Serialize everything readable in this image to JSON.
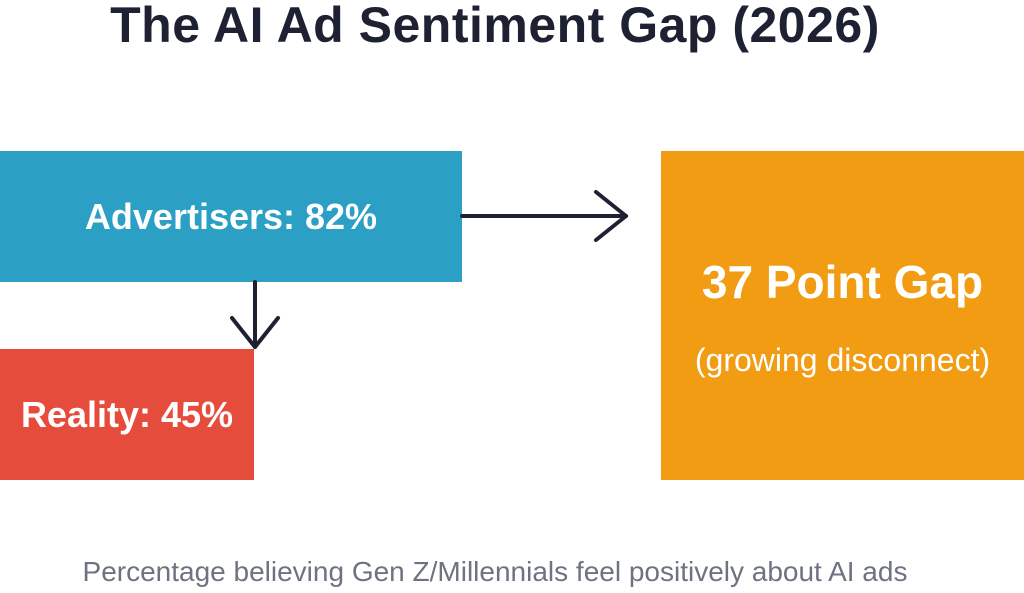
{
  "title": "The AI Ad Sentiment Gap (2026)",
  "advertisers": {
    "label": "Advertisers: 82%"
  },
  "reality": {
    "label": "Reality: 45%"
  },
  "gap": {
    "main": "37 Point Gap",
    "sub": "(growing disconnect)"
  },
  "caption": "Percentage believing Gen Z/Millennials feel positively about AI ads",
  "colors": {
    "advertisers": "#2b9fc4",
    "reality": "#e64c3c",
    "gap": "#f29c14",
    "title": "#1e2132",
    "caption": "#6e7381"
  }
}
